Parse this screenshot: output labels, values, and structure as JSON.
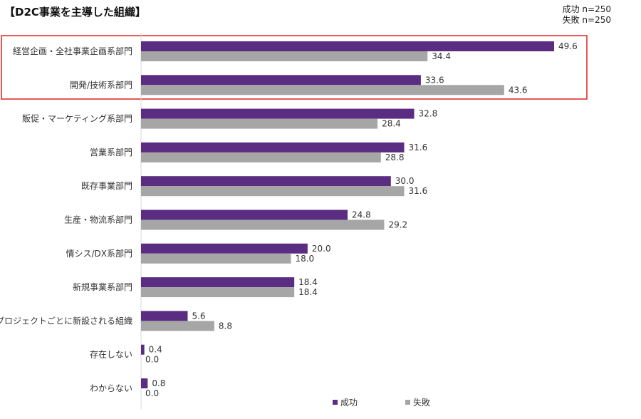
{
  "title": "【D2C事業を主導した組織】",
  "sample_sizes": [
    "成功 n=250",
    "失敗 n=250"
  ],
  "colors": {
    "success": "#5b2d82",
    "failure": "#a6a6a6",
    "highlight": "#e02020",
    "axis": "#d9d9d9"
  },
  "chart_data": {
    "type": "bar",
    "orientation": "horizontal",
    "title": "【D2C事業を主導した組織】",
    "categories": [
      "経営企画・全社事業企画系部門",
      "開発/技術系部門",
      "販促・マーケティング系部門",
      "営業系部門",
      "既存事業部門",
      "生産・物流系部門",
      "情シス/DX系部門",
      "新規事業系部門",
      "プロジェクトごとに新設される組織",
      "存在しない",
      "わからない"
    ],
    "series": [
      {
        "name": "成功",
        "values": [
          49.6,
          33.6,
          32.8,
          31.6,
          30.0,
          24.8,
          20.0,
          18.4,
          5.6,
          0.4,
          0.8
        ]
      },
      {
        "name": "失敗",
        "values": [
          34.4,
          43.6,
          28.4,
          28.8,
          31.6,
          29.2,
          18.0,
          18.4,
          8.8,
          0.0,
          0.0
        ]
      }
    ],
    "value_labels": {
      "成功": [
        "49.6",
        "33.6",
        "32.8",
        "31.6",
        "30.0",
        "24.8",
        "20.0",
        "18.4",
        "5.6",
        "0.4",
        "0.8"
      ],
      "失敗": [
        "34.4",
        "43.6",
        "28.4",
        "28.8",
        "31.6",
        "29.2",
        "18.0",
        "18.4",
        "8.8",
        "0.0",
        "0.0"
      ]
    },
    "legend_position": "bottom-right",
    "highlight_note": "first two categories outlined in red",
    "grid": false
  }
}
